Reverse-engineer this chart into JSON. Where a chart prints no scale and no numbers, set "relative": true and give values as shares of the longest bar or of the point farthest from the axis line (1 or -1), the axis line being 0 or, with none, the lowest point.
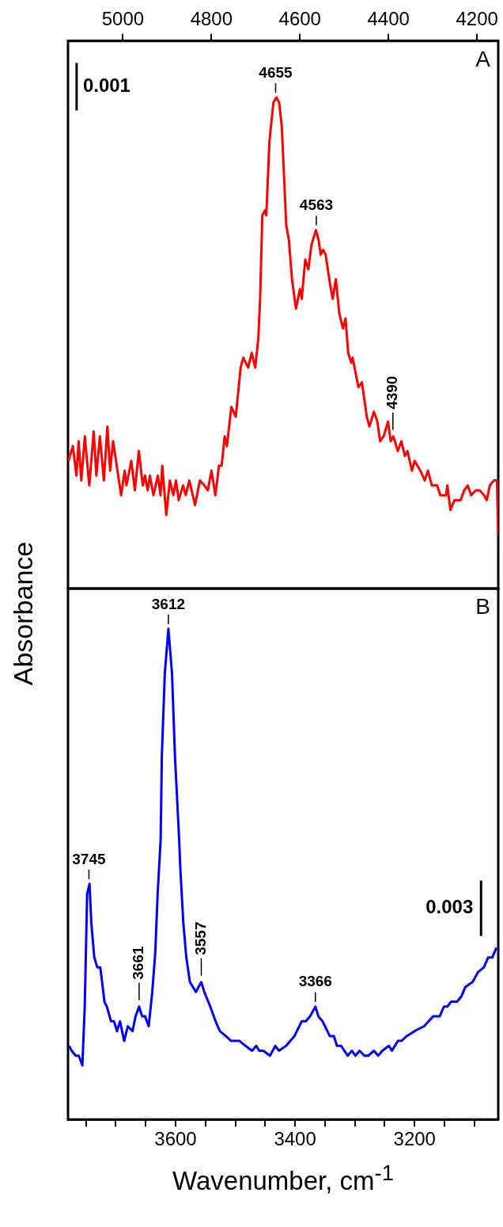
{
  "chart_data": [
    {
      "type": "line",
      "ylabel": "Absorbance",
      "relative": true,
      "xlim": [
        5124,
        4152
      ],
      "xticks": [
        5000,
        4800,
        4600,
        4400,
        4200
      ],
      "tick_labels": "x",
      "grid": false,
      "legend": false,
      "x": [
        5123,
        5113,
        5105,
        5100,
        5094,
        5086,
        5076,
        5066,
        5060,
        5052,
        5043,
        5035,
        5029,
        5022,
        5014,
        5004,
        4996,
        4992,
        4981,
        4973,
        4964,
        4955,
        4950,
        4944,
        4939,
        4931,
        4921,
        4915,
        4911,
        4902,
        4894,
        4886,
        4880,
        4874,
        4864,
        4858,
        4850,
        4837,
        4826,
        4816,
        4808,
        4800,
        4791,
        4783,
        4777,
        4770,
        4765,
        4755,
        4745,
        4734,
        4728,
        4717,
        4709,
        4701,
        4694,
        4690,
        4685,
        4679,
        4676,
        4669,
        4660,
        4653,
        4647,
        4641,
        4631,
        4625,
        4618,
        4612,
        4609,
        4600,
        4596,
        4588,
        4581,
        4574,
        4564,
        4558,
        4553,
        4548,
        4542,
        4532,
        4526,
        4519,
        4511,
        4503,
        4497,
        4491,
        4484,
        4481,
        4468,
        4460,
        4449,
        4443,
        4433,
        4425,
        4419,
        4411,
        4401,
        4395,
        4389,
        4379,
        4371,
        4363,
        4357,
        4347,
        4341,
        4328,
        4318,
        4311,
        4302,
        4290,
        4283,
        4270,
        4267,
        4260,
        4251,
        4242,
        4237,
        4229,
        4221,
        4213,
        4203,
        4194,
        4184,
        4178,
        4171,
        4162,
        4155,
        4152
      ],
      "series": [
        {
          "color": "#ff0000",
          "values": [
            0.26,
            0.29,
            0.23,
            0.3,
            0.22,
            0.31,
            0.21,
            0.32,
            0.23,
            0.31,
            0.22,
            0.33,
            0.24,
            0.3,
            0.25,
            0.19,
            0.24,
            0.21,
            0.26,
            0.2,
            0.28,
            0.21,
            0.23,
            0.2,
            0.23,
            0.19,
            0.23,
            0.19,
            0.25,
            0.15,
            0.22,
            0.19,
            0.22,
            0.18,
            0.21,
            0.19,
            0.22,
            0.17,
            0.22,
            0.21,
            0.2,
            0.24,
            0.19,
            0.25,
            0.25,
            0.31,
            0.29,
            0.37,
            0.35,
            0.45,
            0.47,
            0.45,
            0.48,
            0.45,
            0.51,
            0.59,
            0.76,
            0.77,
            0.76,
            0.91,
            0.99,
            1.0,
            0.99,
            0.94,
            0.74,
            0.71,
            0.63,
            0.59,
            0.57,
            0.61,
            0.59,
            0.67,
            0.65,
            0.7,
            0.73,
            0.71,
            0.68,
            0.69,
            0.68,
            0.62,
            0.59,
            0.63,
            0.56,
            0.53,
            0.55,
            0.48,
            0.46,
            0.47,
            0.41,
            0.42,
            0.35,
            0.33,
            0.36,
            0.34,
            0.3,
            0.31,
            0.34,
            0.3,
            0.31,
            0.28,
            0.3,
            0.27,
            0.28,
            0.24,
            0.26,
            0.24,
            0.22,
            0.24,
            0.21,
            0.21,
            0.19,
            0.19,
            0.21,
            0.16,
            0.18,
            0.18,
            0.18,
            0.2,
            0.21,
            0.19,
            0.2,
            0.2,
            0.19,
            0.18,
            0.21,
            0.22,
            0.22,
            0.11
          ]
        }
      ],
      "annotations": [
        "A",
        "0.001",
        {
          "text": "4655",
          "x": 4655,
          "y": 1.0
        },
        {
          "text": "4563",
          "x": 4563,
          "y": 0.73
        },
        {
          "text": "4390",
          "x": 4390,
          "y": 0.31
        }
      ]
    },
    {
      "type": "line",
      "xlabel": "Wavenumber, cm$^{-1}$",
      "relative": true,
      "xlim": [
        3780,
        3060
      ],
      "xticks": [
        {
          "value": 3750,
          "label": null
        },
        {
          "value": 3700,
          "label": null
        },
        {
          "value": 3650,
          "label": null
        },
        3600,
        {
          "value": 3550,
          "label": null
        },
        {
          "value": 3500,
          "label": null
        },
        {
          "value": 3450,
          "label": null
        },
        3400,
        {
          "value": 3350,
          "label": null
        },
        {
          "value": 3300,
          "label": null
        },
        {
          "value": 3250,
          "label": null
        },
        3200,
        {
          "value": 3150,
          "label": null
        },
        {
          "value": 3100,
          "label": null
        }
      ],
      "tick_labels": "x",
      "grid": false,
      "legend": false,
      "x": [
        3778,
        3774,
        3767,
        3762,
        3756,
        3752,
        3748,
        3744,
        3741,
        3736,
        3731,
        3726,
        3719,
        3715,
        3708,
        3703,
        3698,
        3693,
        3686,
        3680,
        3672,
        3667,
        3661,
        3656,
        3651,
        3645,
        3639,
        3634,
        3630,
        3625,
        3623,
        3618,
        3612,
        3606,
        3601,
        3594,
        3592,
        3587,
        3582,
        3576,
        3571,
        3566,
        3557,
        3552,
        3542,
        3533,
        3526,
        3516,
        3507,
        3500,
        3493,
        3483,
        3472,
        3465,
        3460,
        3453,
        3442,
        3433,
        3427,
        3415,
        3408,
        3401,
        3389,
        3382,
        3375,
        3366,
        3361,
        3354,
        3346,
        3342,
        3335,
        3330,
        3323,
        3312,
        3305,
        3299,
        3292,
        3284,
        3277,
        3268,
        3261,
        3254,
        3243,
        3238,
        3228,
        3222,
        3213,
        3200,
        3184,
        3169,
        3158,
        3151,
        3145,
        3139,
        3129,
        3122,
        3115,
        3103,
        3094,
        3084,
        3077,
        3070,
        3063
      ],
      "series": [
        {
          "color": "#0000ff",
          "values": [
            0.15,
            0.14,
            0.13,
            0.13,
            0.11,
            0.23,
            0.46,
            0.48,
            0.4,
            0.33,
            0.31,
            0.31,
            0.24,
            0.23,
            0.2,
            0.2,
            0.18,
            0.2,
            0.16,
            0.19,
            0.18,
            0.21,
            0.23,
            0.21,
            0.21,
            0.19,
            0.26,
            0.34,
            0.46,
            0.57,
            0.74,
            0.91,
            1.0,
            0.91,
            0.74,
            0.57,
            0.51,
            0.4,
            0.33,
            0.28,
            0.27,
            0.26,
            0.28,
            0.26,
            0.23,
            0.2,
            0.18,
            0.17,
            0.16,
            0.16,
            0.16,
            0.15,
            0.14,
            0.15,
            0.14,
            0.14,
            0.13,
            0.15,
            0.14,
            0.15,
            0.16,
            0.17,
            0.2,
            0.2,
            0.21,
            0.23,
            0.21,
            0.2,
            0.18,
            0.17,
            0.17,
            0.15,
            0.15,
            0.13,
            0.14,
            0.13,
            0.14,
            0.13,
            0.13,
            0.14,
            0.13,
            0.14,
            0.15,
            0.14,
            0.16,
            0.16,
            0.17,
            0.18,
            0.19,
            0.21,
            0.21,
            0.23,
            0.23,
            0.24,
            0.24,
            0.25,
            0.27,
            0.28,
            0.3,
            0.31,
            0.33,
            0.33,
            0.35
          ]
        }
      ],
      "annotations": [
        "B",
        "0.003",
        {
          "text": "3745",
          "x": 3745,
          "y": 0.48
        },
        {
          "text": "3661",
          "x": 3661,
          "y": 0.23
        },
        {
          "text": "3612",
          "x": 3612,
          "y": 1.0
        },
        {
          "text": "3557",
          "x": 3557,
          "y": 0.28
        },
        {
          "text": "3366",
          "x": 3366,
          "y": 0.23
        }
      ]
    }
  ]
}
